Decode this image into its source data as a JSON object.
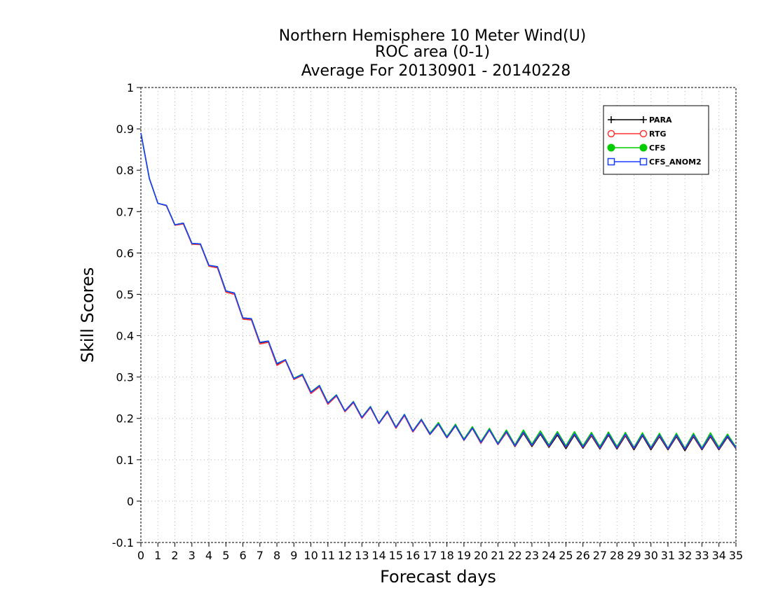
{
  "chart_data": {
    "type": "line",
    "title_lines": [
      "Northern Hemisphere 10 Meter Wind(U)",
      "ROC area (0-1)",
      "Average For 20130901 - 20140228"
    ],
    "xlabel": "Forecast days",
    "ylabel": "Skill Scores",
    "xlim": [
      0,
      35
    ],
    "ylim": [
      -0.1,
      1
    ],
    "x_ticks": [
      "0",
      "1",
      "2",
      "3",
      "4",
      "5",
      "6",
      "7",
      "8",
      "9",
      "10",
      "11",
      "12",
      "13",
      "14",
      "15",
      "16",
      "17",
      "18",
      "19",
      "20",
      "21",
      "22",
      "23",
      "24",
      "25",
      "26",
      "27",
      "28",
      "29",
      "30",
      "31",
      "32",
      "33",
      "34",
      "35"
    ],
    "y_ticks": [
      "-0.1",
      "0",
      "0.1",
      "0.2",
      "0.3",
      "0.4",
      "0.5",
      "0.6",
      "0.7",
      "0.8",
      "0.9",
      "1"
    ],
    "grid": true,
    "legend_position": "top-right",
    "x": [
      0,
      0.5,
      1,
      1.5,
      2,
      2.5,
      3,
      3.5,
      4,
      4.5,
      5,
      5.5,
      6,
      6.5,
      7,
      7.5,
      8,
      8.5,
      9,
      9.5,
      10,
      10.5,
      11,
      11.5,
      12,
      12.5,
      13,
      13.5,
      14,
      14.5,
      15,
      15.5,
      16,
      16.5,
      17,
      17.5,
      18,
      18.5,
      19,
      19.5,
      20,
      20.5,
      21,
      21.5,
      22,
      22.5,
      23,
      23.5,
      24,
      24.5,
      25,
      25.5,
      26,
      26.5,
      27,
      27.5,
      28,
      28.5,
      29,
      29.5,
      30,
      30.5,
      31,
      31.5,
      32,
      32.5,
      33,
      33.5,
      34,
      34.5,
      35
    ],
    "series": [
      {
        "name": "PARA",
        "color": "#000000",
        "marker": "plus",
        "values": [
          0.89,
          0.78,
          0.72,
          0.715,
          0.668,
          0.672,
          0.623,
          0.622,
          0.57,
          0.566,
          0.508,
          0.503,
          0.442,
          0.44,
          0.383,
          0.386,
          0.331,
          0.341,
          0.296,
          0.306,
          0.263,
          0.278,
          0.237,
          0.256,
          0.218,
          0.24,
          0.202,
          0.228,
          0.188,
          0.216,
          0.177,
          0.208,
          0.168,
          0.196,
          0.161,
          0.186,
          0.153,
          0.182,
          0.147,
          0.176,
          0.14,
          0.172,
          0.137,
          0.166,
          0.132,
          0.164,
          0.132,
          0.162,
          0.13,
          0.16,
          0.127,
          0.16,
          0.128,
          0.158,
          0.126,
          0.16,
          0.126,
          0.158,
          0.124,
          0.158,
          0.124,
          0.156,
          0.124,
          0.156,
          0.122,
          0.156,
          0.124,
          0.156,
          0.124,
          0.155,
          0.127
        ]
      },
      {
        "name": "RTG",
        "color": "#ff3333",
        "marker": "circle-open",
        "values": [
          0.89,
          0.78,
          0.72,
          0.714,
          0.667,
          0.67,
          0.621,
          0.62,
          0.568,
          0.564,
          0.505,
          0.5,
          0.44,
          0.438,
          0.38,
          0.384,
          0.328,
          0.34,
          0.294,
          0.304,
          0.26,
          0.276,
          0.234,
          0.254,
          0.216,
          0.238,
          0.2,
          0.226,
          0.187,
          0.215,
          0.176,
          0.207,
          0.167,
          0.195,
          0.161,
          0.186,
          0.153,
          0.182,
          0.147,
          0.176,
          0.14,
          0.172,
          0.137,
          0.166,
          0.133,
          0.166,
          0.134,
          0.164,
          0.132,
          0.163,
          0.13,
          0.162,
          0.13,
          0.16,
          0.128,
          0.162,
          0.128,
          0.16,
          0.127,
          0.16,
          0.127,
          0.158,
          0.126,
          0.158,
          0.125,
          0.158,
          0.126,
          0.158,
          0.126,
          0.157,
          0.128
        ]
      },
      {
        "name": "CFS",
        "color": "#00cc00",
        "marker": "circle-filled",
        "values": [
          0.89,
          0.78,
          0.72,
          0.715,
          0.668,
          0.672,
          0.623,
          0.622,
          0.57,
          0.567,
          0.508,
          0.503,
          0.443,
          0.441,
          0.384,
          0.387,
          0.333,
          0.342,
          0.297,
          0.307,
          0.264,
          0.28,
          0.238,
          0.257,
          0.218,
          0.241,
          0.203,
          0.229,
          0.189,
          0.218,
          0.179,
          0.21,
          0.17,
          0.198,
          0.164,
          0.19,
          0.156,
          0.186,
          0.15,
          0.18,
          0.144,
          0.176,
          0.14,
          0.172,
          0.136,
          0.172,
          0.138,
          0.17,
          0.136,
          0.168,
          0.134,
          0.168,
          0.134,
          0.166,
          0.132,
          0.167,
          0.132,
          0.166,
          0.13,
          0.165,
          0.13,
          0.164,
          0.128,
          0.164,
          0.128,
          0.164,
          0.129,
          0.165,
          0.13,
          0.162,
          0.131
        ]
      },
      {
        "name": "CFS_ANOM2",
        "color": "#1a3fff",
        "marker": "square-open",
        "values": [
          0.89,
          0.78,
          0.72,
          0.715,
          0.668,
          0.672,
          0.623,
          0.622,
          0.57,
          0.567,
          0.508,
          0.503,
          0.443,
          0.441,
          0.384,
          0.387,
          0.332,
          0.342,
          0.296,
          0.306,
          0.263,
          0.279,
          0.237,
          0.256,
          0.218,
          0.24,
          0.202,
          0.228,
          0.188,
          0.217,
          0.178,
          0.209,
          0.169,
          0.197,
          0.162,
          0.187,
          0.154,
          0.183,
          0.148,
          0.177,
          0.142,
          0.173,
          0.138,
          0.168,
          0.134,
          0.167,
          0.135,
          0.165,
          0.133,
          0.164,
          0.131,
          0.163,
          0.131,
          0.162,
          0.129,
          0.163,
          0.129,
          0.162,
          0.128,
          0.161,
          0.128,
          0.16,
          0.127,
          0.16,
          0.126,
          0.16,
          0.127,
          0.16,
          0.127,
          0.158,
          0.129
        ]
      }
    ]
  }
}
